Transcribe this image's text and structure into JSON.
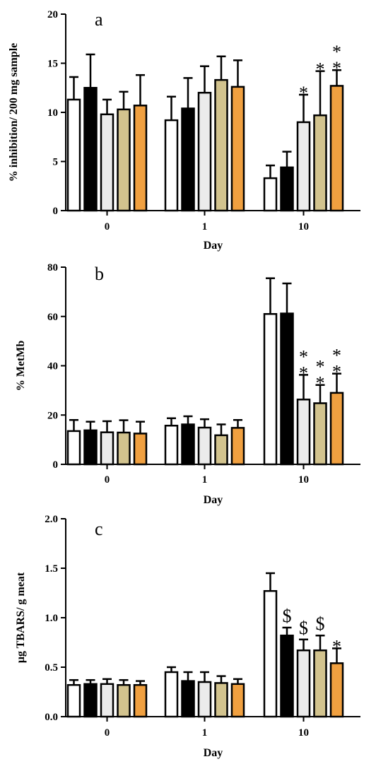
{
  "chart_data": [
    {
      "type": "bar",
      "panel_label": "a",
      "xlabel": "Day",
      "ylabel": "% inhibition/ 200 mg sample",
      "categories": [
        "0",
        "1",
        "10"
      ],
      "ylim": [
        0,
        20
      ],
      "yticks": [
        0,
        5,
        10,
        15,
        20
      ],
      "series": [
        {
          "color": "#ffffff",
          "values": [
            11.3,
            9.2,
            3.3
          ],
          "errors": [
            2.3,
            2.4,
            1.3
          ]
        },
        {
          "color": "#000000",
          "values": [
            12.5,
            10.4,
            4.4
          ],
          "errors": [
            3.4,
            3.1,
            1.6
          ]
        },
        {
          "color": "#ebebeb",
          "values": [
            9.8,
            12.0,
            9.0
          ],
          "errors": [
            1.5,
            2.7,
            2.8
          ]
        },
        {
          "color": "#d2c38e",
          "values": [
            10.3,
            13.3,
            9.7
          ],
          "errors": [
            1.8,
            2.4,
            4.5
          ]
        },
        {
          "color": "#f0a040",
          "values": [
            10.7,
            12.6,
            12.7
          ],
          "errors": [
            3.1,
            2.7,
            1.6
          ]
        }
      ],
      "annotations": [
        {
          "category": "10",
          "series_index": 2,
          "text": "*"
        },
        {
          "category": "10",
          "series_index": 3,
          "text": "*"
        },
        {
          "category": "10",
          "series_index": 4,
          "text": "**"
        }
      ]
    },
    {
      "type": "bar",
      "panel_label": "b",
      "xlabel": "Day",
      "ylabel": "% MetMb",
      "categories": [
        "0",
        "1",
        "10"
      ],
      "ylim": [
        0,
        80
      ],
      "yticks": [
        0,
        20,
        40,
        60,
        80
      ],
      "series": [
        {
          "color": "#ffffff",
          "values": [
            13.5,
            15.7,
            61.0
          ],
          "errors": [
            4.5,
            3.0,
            14.5
          ]
        },
        {
          "color": "#000000",
          "values": [
            13.8,
            16.2,
            61.2
          ],
          "errors": [
            3.5,
            3.3,
            12.2
          ]
        },
        {
          "color": "#ebebeb",
          "values": [
            13.0,
            14.9,
            26.3
          ],
          "errors": [
            4.5,
            3.4,
            10.0
          ]
        },
        {
          "color": "#d2c38e",
          "values": [
            12.9,
            11.8,
            24.8
          ],
          "errors": [
            5.0,
            4.4,
            7.4
          ]
        },
        {
          "color": "#f0a040",
          "values": [
            12.5,
            14.8,
            29.0
          ],
          "errors": [
            4.8,
            3.2,
            7.8
          ]
        }
      ],
      "annotations": [
        {
          "category": "10",
          "series_index": 2,
          "text": "**"
        },
        {
          "category": "10",
          "series_index": 3,
          "text": "**"
        },
        {
          "category": "10",
          "series_index": 4,
          "text": "**"
        }
      ]
    },
    {
      "type": "bar",
      "panel_label": "c",
      "xlabel": "Day",
      "ylabel": "μg TBARS/ g meat",
      "categories": [
        "0",
        "1",
        "10"
      ],
      "ylim": [
        0,
        2.0
      ],
      "yticks": [
        "0.0",
        "0.5",
        "1.0",
        "1.5",
        "2.0"
      ],
      "series": [
        {
          "color": "#ffffff",
          "values": [
            0.32,
            0.45,
            1.27
          ],
          "errors": [
            0.05,
            0.05,
            0.18
          ]
        },
        {
          "color": "#000000",
          "values": [
            0.33,
            0.36,
            0.82
          ],
          "errors": [
            0.04,
            0.09,
            0.08
          ]
        },
        {
          "color": "#ebebeb",
          "values": [
            0.33,
            0.35,
            0.67
          ],
          "errors": [
            0.05,
            0.1,
            0.11
          ]
        },
        {
          "color": "#d2c38e",
          "values": [
            0.32,
            0.34,
            0.67
          ],
          "errors": [
            0.05,
            0.07,
            0.15
          ]
        },
        {
          "color": "#f0a040",
          "values": [
            0.32,
            0.33,
            0.54
          ],
          "errors": [
            0.04,
            0.05,
            0.15
          ]
        }
      ],
      "annotations": [
        {
          "category": "10",
          "series_index": 1,
          "text": "$"
        },
        {
          "category": "10",
          "series_index": 2,
          "text": "$"
        },
        {
          "category": "10",
          "series_index": 3,
          "text": "$"
        },
        {
          "category": "10",
          "series_index": 4,
          "text": "*"
        }
      ]
    }
  ]
}
